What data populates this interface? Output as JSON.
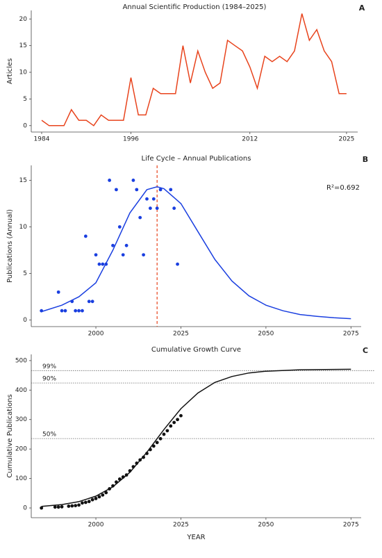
{
  "chart_data": [
    {
      "type": "line",
      "label": "A",
      "title": "Annual Scientific Production (1984–2025)",
      "ylabel": "Articles",
      "x": [
        1984,
        1985,
        1986,
        1987,
        1988,
        1989,
        1990,
        1991,
        1992,
        1993,
        1994,
        1995,
        1996,
        1997,
        1998,
        1999,
        2000,
        2001,
        2002,
        2003,
        2004,
        2005,
        2006,
        2007,
        2008,
        2009,
        2010,
        2011,
        2012,
        2013,
        2014,
        2015,
        2016,
        2017,
        2018,
        2019,
        2020,
        2021,
        2022,
        2023,
        2024,
        2025
      ],
      "values": [
        1,
        0,
        0,
        0,
        3,
        1,
        1,
        0,
        2,
        1,
        1,
        1,
        9,
        2,
        2,
        7,
        6,
        6,
        6,
        15,
        8,
        14,
        10,
        7,
        8,
        16,
        15,
        14,
        11,
        7,
        13,
        12,
        13,
        12,
        14,
        21,
        16,
        18,
        14,
        12,
        6,
        6
      ],
      "color": "#e8431c",
      "xlim": [
        1982.6,
        2026.5
      ],
      "xticks": [
        1984,
        1996,
        2012,
        2025
      ],
      "ylim": [
        -1.2,
        21.6
      ],
      "yticks": [
        0,
        5,
        10,
        15,
        20
      ]
    },
    {
      "type": "scatter",
      "label": "B",
      "title": "Life Cycle – Annual Publications",
      "ylabel": "Publications (Annual)",
      "x": [
        1984,
        1989,
        1990,
        1991,
        1993,
        1994,
        1995,
        1996,
        1997,
        1998,
        1999,
        2000,
        2001,
        2002,
        2003,
        2004,
        2005,
        2006,
        2007,
        2008,
        2009,
        2011,
        2012,
        2013,
        2014,
        2015,
        2016,
        2017,
        2018,
        2019,
        2022,
        2023,
        2024
      ],
      "values": [
        1,
        3,
        1,
        1,
        2,
        1,
        1,
        1,
        9,
        2,
        2,
        7,
        6,
        6,
        6,
        15,
        8,
        14,
        10,
        7,
        8,
        15,
        14,
        11,
        7,
        13,
        12,
        13,
        12,
        14,
        14,
        12,
        6
      ],
      "color": "#1a3fe0",
      "fit": {
        "x": [
          1984,
          1990,
          1995,
          2000,
          2005,
          2010,
          2015,
          2018,
          2020,
          2025,
          2030,
          2035,
          2040,
          2045,
          2050,
          2055,
          2060,
          2065,
          2070,
          2075
        ],
        "values": [
          0.9,
          1.6,
          2.5,
          4.0,
          7.5,
          11.5,
          14.0,
          14.3,
          14.1,
          12.5,
          9.5,
          6.5,
          4.2,
          2.6,
          1.6,
          1.0,
          0.6,
          0.4,
          0.25,
          0.15
        ],
        "color": "#1a3fe0"
      },
      "vline": {
        "value": 2018,
        "color": "#e8431c"
      },
      "annotation": "R²=0.692",
      "xlim": [
        1981,
        2078
      ],
      "xticks": [
        2000,
        2025,
        2050,
        2075
      ],
      "ylim": [
        -0.7,
        16.6
      ],
      "yticks": [
        0,
        5,
        10,
        15
      ]
    },
    {
      "type": "scatter",
      "label": "C",
      "title": "Cumulative Growth Curve",
      "ylabel": "Cumulative Publications",
      "xlabel": "YEAR",
      "x": [
        1984,
        1988,
        1989,
        1990,
        1992,
        1993,
        1994,
        1995,
        1996,
        1997,
        1998,
        1999,
        2000,
        2001,
        2002,
        2003,
        2004,
        2005,
        2006,
        2007,
        2008,
        2009,
        2010,
        2011,
        2012,
        2013,
        2014,
        2015,
        2016,
        2017,
        2018,
        2019,
        2020,
        2021,
        2022,
        2023,
        2024,
        2025
      ],
      "values": [
        0,
        3,
        3,
        4,
        6,
        7,
        8,
        10,
        17,
        19,
        22,
        28,
        32,
        38,
        44,
        52,
        65,
        75,
        88,
        98,
        105,
        112,
        126,
        140,
        152,
        163,
        172,
        185,
        198,
        210,
        222,
        235,
        250,
        262,
        278,
        290,
        300,
        313
      ],
      "color": "#111111",
      "fit": {
        "x": [
          1984,
          1990,
          1995,
          2000,
          2005,
          2010,
          2015,
          2020,
          2025,
          2030,
          2035,
          2040,
          2045,
          2050,
          2060,
          2075
        ],
        "values": [
          5.2,
          11.5,
          21.5,
          40,
          71.7,
          121,
          189,
          266,
          337,
          390,
          426,
          446,
          458,
          464,
          469,
          470.5
        ],
        "color": "#111111"
      },
      "hlines": [
        {
          "value": 466,
          "label": "99%"
        },
        {
          "value": 424,
          "label": "90%"
        },
        {
          "value": 235.5,
          "label": "50%"
        }
      ],
      "xlim": [
        1981,
        2078
      ],
      "xticks": [
        2000,
        2025,
        2050,
        2075
      ],
      "ylim": [
        -33,
        521
      ],
      "yticks": [
        0,
        100,
        200,
        300,
        400,
        500
      ]
    }
  ]
}
